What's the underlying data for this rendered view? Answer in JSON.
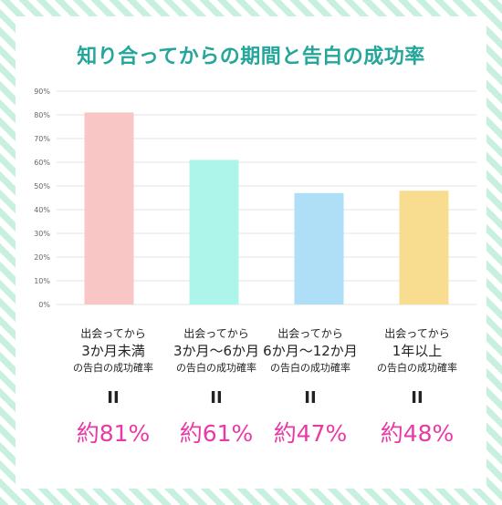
{
  "title": "知り合ってからの期間と告白の成功率",
  "chart_data": {
    "type": "bar",
    "ylim": [
      0,
      90
    ],
    "yticks": [
      "0%",
      "10%",
      "20%",
      "30%",
      "40%",
      "50%",
      "60%",
      "70%",
      "80%",
      "90%"
    ],
    "categories": [
      "3か月未満",
      "3か月〜6か月",
      "6か月〜12か月",
      "1年以上"
    ],
    "values": [
      81,
      61,
      47,
      48
    ],
    "unit": "%",
    "grid": true,
    "colors": [
      "#f8c6c4",
      "#adf5ea",
      "#afdff7",
      "#f8dd90"
    ]
  },
  "labels": [
    {
      "line1": "出会ってから",
      "line2": "3か月未満",
      "line3": "の告白の成功確率",
      "eq": "II",
      "pct": "約81%"
    },
    {
      "line1": "出会ってから",
      "line2": "3か月〜6か月",
      "line3": "の告白の成功確率",
      "eq": "II",
      "pct": "約61%"
    },
    {
      "line1": "出会ってから",
      "line2": "6か月〜12か月",
      "line3": "の告白の成功確率",
      "eq": "II",
      "pct": "約47%"
    },
    {
      "line1": "出会ってから",
      "line2": "1年以上",
      "line3": "の告白の成功確率",
      "eq": "II",
      "pct": "約48%"
    }
  ]
}
